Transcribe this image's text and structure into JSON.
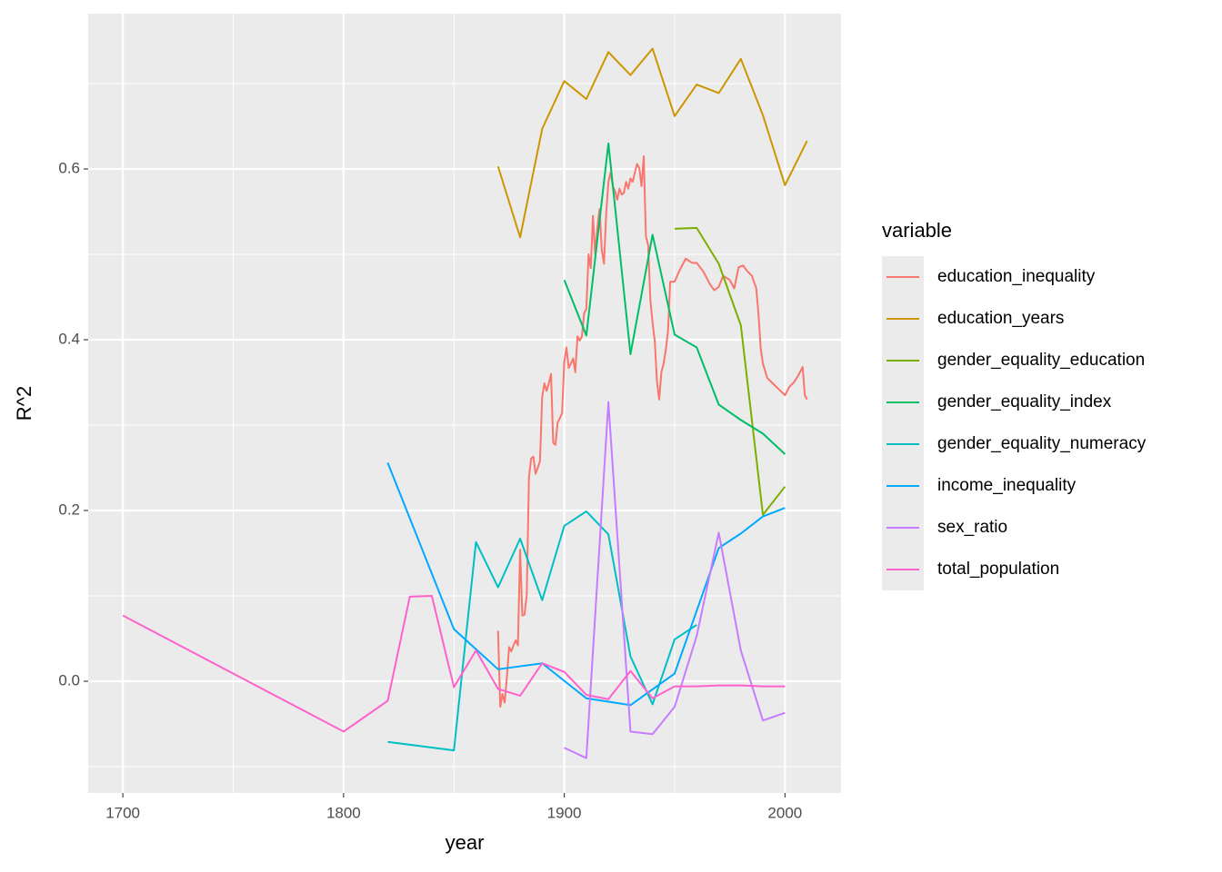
{
  "chart_data": {
    "type": "line",
    "x_label": "year",
    "y_label": "R^2",
    "legend_title": "variable",
    "legend_position": "right",
    "grid": true,
    "xlim": [
      1684.3,
      2025.4
    ],
    "ylim": [
      -0.1309,
      0.782
    ],
    "xticks": [
      1700,
      1800,
      1900,
      2000
    ],
    "xminor": [
      1750,
      1850,
      1950
    ],
    "yticks": [
      {
        "value": 0,
        "label": "0.0"
      },
      0.2,
      0.4,
      0.6
    ],
    "yminor": [
      -0.1,
      0.1,
      0.3,
      0.5,
      0.7
    ],
    "series": [
      {
        "name": "education_inequality",
        "color": "#F8766D",
        "x": [
          1870,
          1871,
          1872,
          1873,
          1874,
          1875,
          1876,
          1877,
          1878,
          1879,
          1880,
          1881,
          1882,
          1883,
          1884,
          1885,
          1886,
          1887,
          1888,
          1889,
          1890,
          1891,
          1892,
          1893,
          1894,
          1895,
          1896,
          1897,
          1898,
          1899,
          1900,
          1901,
          1902,
          1903,
          1904,
          1905,
          1906,
          1907,
          1908,
          1909,
          1910,
          1911,
          1912,
          1913,
          1914,
          1915,
          1916,
          1917,
          1918,
          1919,
          1920,
          1921,
          1922,
          1923,
          1924,
          1925,
          1926,
          1927,
          1928,
          1929,
          1930,
          1931,
          1932,
          1933,
          1934,
          1935,
          1936,
          1937,
          1938,
          1939,
          1940,
          1941,
          1942,
          1943,
          1944,
          1945,
          1946,
          1947,
          1948,
          1950,
          1952,
          1955,
          1958,
          1960,
          1963,
          1966,
          1968,
          1970,
          1972,
          1975,
          1977,
          1979,
          1981,
          1983,
          1985,
          1987,
          1988,
          1989,
          1990,
          1992,
          1994,
          1996,
          1998,
          2000,
          2002,
          2004,
          2006,
          2008,
          2009,
          2010
        ],
        "values": [
          0.059,
          -0.03,
          -0.015,
          -0.025,
          0.005,
          0.04,
          0.035,
          0.042,
          0.048,
          0.042,
          0.154,
          0.077,
          0.078,
          0.101,
          0.239,
          0.261,
          0.263,
          0.243,
          0.25,
          0.258,
          0.333,
          0.349,
          0.34,
          0.349,
          0.36,
          0.279,
          0.277,
          0.303,
          0.308,
          0.314,
          0.374,
          0.391,
          0.367,
          0.372,
          0.378,
          0.362,
          0.404,
          0.399,
          0.404,
          0.431,
          0.436,
          0.5,
          0.484,
          0.545,
          0.5,
          0.532,
          0.553,
          0.505,
          0.489,
          0.548,
          0.585,
          0.596,
          0.58,
          0.574,
          0.564,
          0.577,
          0.57,
          0.572,
          0.585,
          0.577,
          0.589,
          0.585,
          0.596,
          0.606,
          0.601,
          0.58,
          0.615,
          0.521,
          0.511,
          0.447,
          0.42,
          0.399,
          0.351,
          0.33,
          0.362,
          0.372,
          0.388,
          0.41,
          0.468,
          0.468,
          0.48,
          0.495,
          0.49,
          0.49,
          0.48,
          0.465,
          0.458,
          0.462,
          0.475,
          0.47,
          0.46,
          0.485,
          0.487,
          0.48,
          0.475,
          0.46,
          0.43,
          0.39,
          0.372,
          0.355,
          0.35,
          0.345,
          0.34,
          0.335,
          0.345,
          0.35,
          0.358,
          0.368,
          0.335,
          0.33
        ]
      },
      {
        "name": "education_years",
        "color": "#CD9600",
        "x": [
          1870,
          1880,
          1890,
          1900,
          1910,
          1920,
          1930,
          1940,
          1950,
          1960,
          1970,
          1980,
          1990,
          2000,
          2010
        ],
        "values": [
          0.603,
          0.52,
          0.647,
          0.703,
          0.682,
          0.737,
          0.71,
          0.741,
          0.662,
          0.699,
          0.689,
          0.729,
          0.663,
          0.581,
          0.633
        ]
      },
      {
        "name": "gender_equality_education",
        "color": "#7CAE00",
        "x": [
          1950,
          1960,
          1970,
          1980,
          1990,
          2000
        ],
        "values": [
          0.53,
          0.531,
          0.489,
          0.417,
          0.195,
          0.228
        ]
      },
      {
        "name": "gender_equality_index",
        "color": "#00BE67",
        "x": [
          1900,
          1910,
          1920,
          1930,
          1940,
          1950,
          1960,
          1970,
          1980,
          1990,
          2000
        ],
        "values": [
          0.47,
          0.405,
          0.63,
          0.383,
          0.523,
          0.406,
          0.391,
          0.324,
          0.306,
          0.29,
          0.266
        ]
      },
      {
        "name": "gender_equality_numeracy",
        "color": "#00BFC4",
        "x": [
          1820,
          1850,
          1860,
          1870,
          1880,
          1890,
          1900,
          1910,
          1920,
          1930,
          1940,
          1950,
          1960
        ],
        "values": [
          -0.071,
          -0.081,
          0.163,
          0.11,
          0.167,
          0.095,
          0.182,
          0.199,
          0.172,
          0.029,
          -0.027,
          0.049,
          0.066
        ]
      },
      {
        "name": "income_inequality",
        "color": "#00A9FF",
        "x": [
          1820,
          1850,
          1870,
          1890,
          1910,
          1930,
          1950,
          1970,
          1980,
          1990,
          2000
        ],
        "values": [
          0.256,
          0.061,
          0.014,
          0.021,
          -0.02,
          -0.028,
          0.009,
          0.156,
          0.173,
          0.193,
          0.203
        ]
      },
      {
        "name": "sex_ratio",
        "color": "#C77CFF",
        "x": [
          1900,
          1910,
          1920,
          1930,
          1940,
          1950,
          1960,
          1970,
          1980,
          1990,
          2000
        ],
        "values": [
          -0.078,
          -0.09,
          0.327,
          -0.059,
          -0.062,
          -0.03,
          0.053,
          0.174,
          0.036,
          -0.046,
          -0.037
        ]
      },
      {
        "name": "total_population",
        "color": "#FF61CC",
        "x": [
          1700,
          1800,
          1820,
          1830,
          1840,
          1850,
          1860,
          1870,
          1880,
          1890,
          1900,
          1910,
          1920,
          1930,
          1940,
          1950,
          1960,
          1970,
          1980,
          1990,
          2000
        ],
        "values": [
          0.077,
          -0.059,
          -0.023,
          0.099,
          0.1,
          -0.007,
          0.036,
          -0.009,
          -0.017,
          0.021,
          0.011,
          -0.016,
          -0.021,
          0.012,
          -0.02,
          -0.006,
          -0.006,
          -0.005,
          -0.005,
          -0.006,
          -0.006
        ]
      }
    ]
  }
}
